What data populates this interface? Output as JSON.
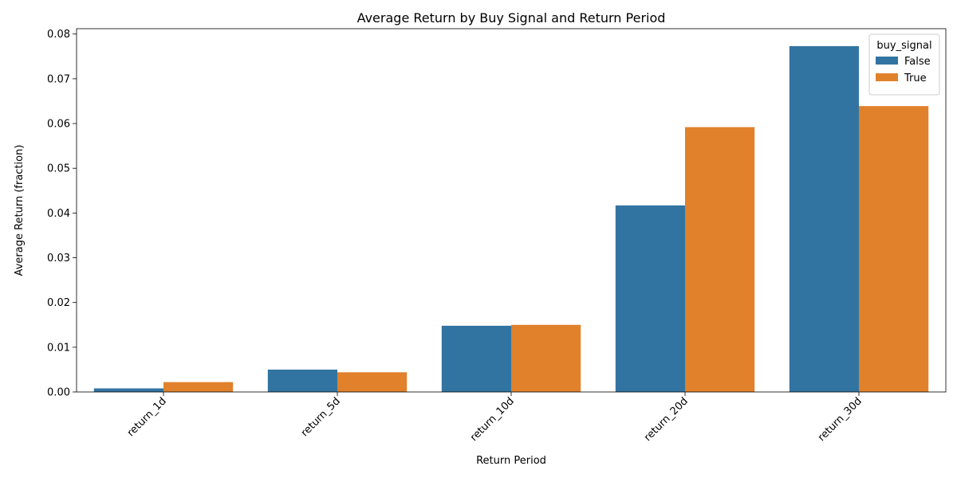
{
  "chart_data": {
    "type": "bar",
    "title": "Average Return by Buy Signal and Return Period",
    "xlabel": "Return Period",
    "ylabel": "Average Return (fraction)",
    "categories": [
      "return_1d",
      "return_5d",
      "return_10d",
      "return_20d",
      "return_30d"
    ],
    "series": [
      {
        "name": "False",
        "color": "#3274a1",
        "values": [
          0.0008,
          0.005,
          0.0148,
          0.0417,
          0.0773
        ]
      },
      {
        "name": "True",
        "color": "#e1812c",
        "values": [
          0.0022,
          0.0044,
          0.015,
          0.0592,
          0.0639
        ]
      }
    ],
    "ylim": [
      0,
      0.0812
    ],
    "yticks": [
      "0.00",
      "0.01",
      "0.02",
      "0.03",
      "0.04",
      "0.05",
      "0.06",
      "0.07",
      "0.08"
    ],
    "ytick_values": [
      0,
      0.01,
      0.02,
      0.03,
      0.04,
      0.05,
      0.06,
      0.07,
      0.08
    ],
    "legend_title": "buy_signal",
    "legend_position": "top-right",
    "grid": false
  }
}
